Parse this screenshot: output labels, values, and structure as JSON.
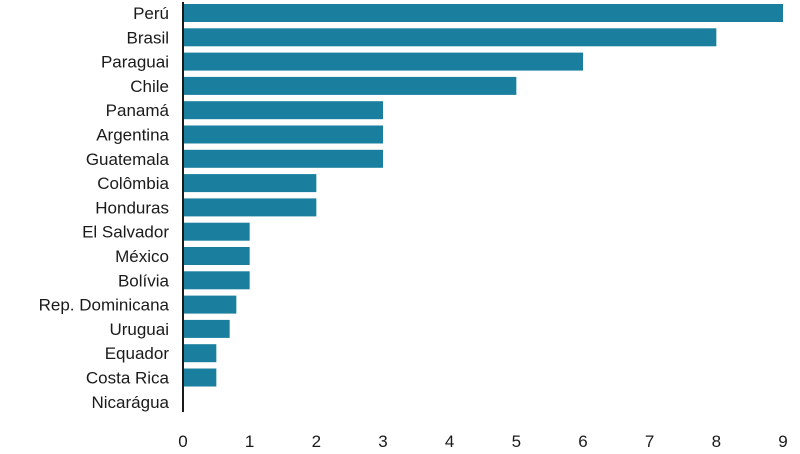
{
  "chart_data": {
    "type": "bar",
    "orientation": "horizontal",
    "categories": [
      "Perú",
      "Brasil",
      "Paraguai",
      "Chile",
      "Panamá",
      "Argentina",
      "Guatemala",
      "Colômbia",
      "Honduras",
      "El Salvador",
      "México",
      "Bolívia",
      "Rep. Dominicana",
      "Uruguai",
      "Equador",
      "Costa Rica",
      "Nicarágua"
    ],
    "values": [
      9,
      8,
      6,
      5,
      3,
      3,
      3,
      2,
      2,
      1,
      1,
      1,
      0.8,
      0.7,
      0.5,
      0.5,
      0
    ],
    "xlim": [
      0,
      9
    ],
    "xticks": [
      0,
      1,
      2,
      3,
      4,
      5,
      6,
      7,
      8,
      9
    ],
    "grid": false,
    "bar_color": "#1a7f9e"
  }
}
